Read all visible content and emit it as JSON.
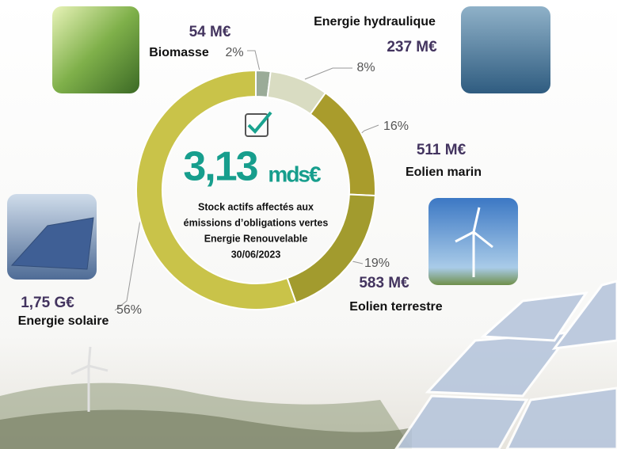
{
  "chart_data": {
    "type": "donut",
    "categories": [
      "Biomasse",
      "Energie hydraulique",
      "Eolien marin",
      "Eolien terrestre",
      "Energie solaire"
    ],
    "values": [
      2,
      8,
      16,
      19,
      56
    ],
    "value_labels": [
      "2%",
      "8%",
      "16%",
      "19%",
      "56%"
    ],
    "amount_labels": [
      "54 M€",
      "237 M€",
      "511 M€",
      "583 M€",
      "1,75 G€"
    ],
    "colors": [
      "#9aab98",
      "#d9dcc2",
      "#a99c2c",
      "#a29b2e",
      "#c9c349"
    ],
    "total": "3,13",
    "total_unit": "mds€",
    "center_lines": [
      "Stock actifs affectés aux",
      "émissions d’obligations vertes",
      "Energie Renouvelable",
      "30/06/2023"
    ]
  }
}
